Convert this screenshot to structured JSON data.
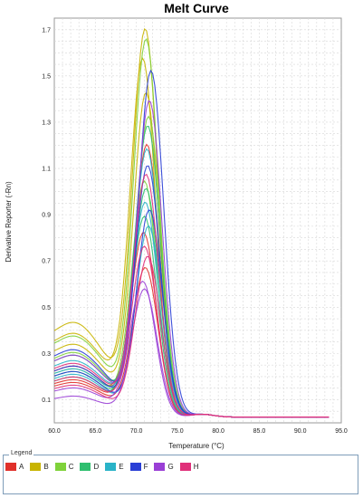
{
  "chart_data": {
    "type": "line",
    "title": "Melt Curve",
    "xlabel": "Temperature (°C)",
    "ylabel": "Derivative Reporter (-Rn)",
    "xlim": [
      60.0,
      95.0
    ],
    "ylim": [
      0.0,
      1.75
    ],
    "x_ticks": [
      "60.0",
      "65.0",
      "70.0",
      "75.0",
      "80.0",
      "85.0",
      "90.0",
      "95.0"
    ],
    "y_ticks": [
      "0.1",
      "0.3",
      "0.5",
      "0.7",
      "0.9",
      "1.1",
      "1.3",
      "1.5",
      "1.7"
    ],
    "x_tick_values": [
      60,
      65,
      70,
      75,
      80,
      85,
      90,
      95
    ],
    "y_tick_values": [
      0.1,
      0.3,
      0.5,
      0.7,
      0.9,
      1.1,
      1.3,
      1.5,
      1.7
    ],
    "grid": true,
    "legend_title": "Legend",
    "series": [
      {
        "name": "A",
        "color": "#e0302a",
        "curves": [
          {
            "peak": 1.21,
            "center": 71.3,
            "base": 0.22
          },
          {
            "peak": 0.83,
            "center": 70.9,
            "base": 0.17
          },
          {
            "peak": 0.68,
            "center": 71.1,
            "base": 0.16
          }
        ]
      },
      {
        "name": "B",
        "color": "#c8b400",
        "curves": [
          {
            "peak": 1.7,
            "center": 71.1,
            "base": 0.38
          },
          {
            "peak": 1.57,
            "center": 70.8,
            "base": 0.34
          },
          {
            "peak": 1.43,
            "center": 71.2,
            "base": 0.3
          }
        ]
      },
      {
        "name": "C",
        "color": "#7fd23a",
        "curves": [
          {
            "peak": 1.66,
            "center": 71.2,
            "base": 0.33
          },
          {
            "peak": 1.33,
            "center": 71.5,
            "base": 0.27
          },
          {
            "peak": 1.05,
            "center": 71.0,
            "base": 0.21
          }
        ]
      },
      {
        "name": "D",
        "color": "#2fbf6f",
        "curves": [
          {
            "peak": 1.29,
            "center": 71.4,
            "base": 0.26
          },
          {
            "peak": 1.02,
            "center": 71.2,
            "base": 0.2
          },
          {
            "peak": 0.9,
            "center": 71.0,
            "base": 0.18
          }
        ]
      },
      {
        "name": "E",
        "color": "#2ab3c8",
        "curves": [
          {
            "peak": 1.19,
            "center": 71.3,
            "base": 0.24
          },
          {
            "peak": 0.96,
            "center": 71.1,
            "base": 0.21
          },
          {
            "peak": 0.86,
            "center": 71.5,
            "base": 0.19
          }
        ]
      },
      {
        "name": "F",
        "color": "#2a3fd6",
        "curves": [
          {
            "peak": 1.53,
            "center": 71.8,
            "base": 0.28
          },
          {
            "peak": 1.12,
            "center": 71.4,
            "base": 0.22
          },
          {
            "peak": 0.93,
            "center": 71.6,
            "base": 0.2
          }
        ]
      },
      {
        "name": "G",
        "color": "#9a3fd6",
        "curves": [
          {
            "peak": 1.4,
            "center": 71.6,
            "base": 0.26
          },
          {
            "peak": 0.62,
            "center": 70.8,
            "base": 0.14
          },
          {
            "peak": 0.59,
            "center": 71.0,
            "base": 0.11
          }
        ]
      },
      {
        "name": "H",
        "color": "#e0307a",
        "curves": [
          {
            "peak": 1.08,
            "center": 71.2,
            "base": 0.23
          },
          {
            "peak": 0.77,
            "center": 71.0,
            "base": 0.18
          },
          {
            "peak": 0.73,
            "center": 71.4,
            "base": 0.15
          }
        ]
      }
    ]
  }
}
